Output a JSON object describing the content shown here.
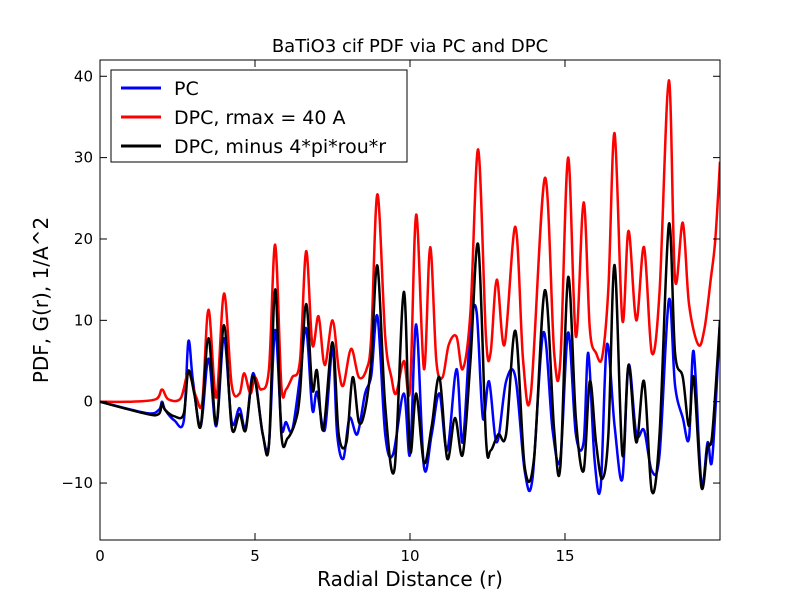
{
  "chart_data": {
    "type": "line",
    "title": "BaTiO3 cif PDF via PC and DPC",
    "xlabel": "Radial Distance (r)",
    "ylabel": "PDF, G(r), 1/A^2",
    "xlim": [
      0,
      20
    ],
    "ylim": [
      -17,
      42
    ],
    "x_ticks": [
      0,
      5,
      10,
      15
    ],
    "x_tick_labels": [
      "0",
      "5",
      "10",
      "15"
    ],
    "y_ticks": [
      -10,
      0,
      10,
      20,
      30,
      40
    ],
    "y_tick_labels": [
      "−10",
      "0",
      "10",
      "20",
      "30",
      "40"
    ],
    "grid": false,
    "legend": {
      "placement": "top-left"
    },
    "series": [
      {
        "name": "PC",
        "color": "#0000ff",
        "points": [
          [
            0,
            0
          ],
          [
            1.5,
            -1.4
          ],
          [
            1.9,
            -1.0
          ],
          [
            2.0,
            0
          ],
          [
            2.1,
            -1.0
          ],
          [
            2.4,
            -2.3
          ],
          [
            2.7,
            -2.4
          ],
          [
            2.85,
            7.4
          ],
          [
            3.0,
            2.5
          ],
          [
            3.25,
            -3.0
          ],
          [
            3.5,
            5.3
          ],
          [
            3.75,
            -3.0
          ],
          [
            4.0,
            7.8
          ],
          [
            4.25,
            -2.5
          ],
          [
            4.5,
            -0.8
          ],
          [
            4.7,
            -3.2
          ],
          [
            4.95,
            3.5
          ],
          [
            5.25,
            -4.0
          ],
          [
            5.45,
            -5.2
          ],
          [
            5.65,
            8.8
          ],
          [
            5.85,
            -3.0
          ],
          [
            6.0,
            -2.5
          ],
          [
            6.2,
            -3.5
          ],
          [
            6.45,
            3.0
          ],
          [
            6.65,
            9.0
          ],
          [
            6.85,
            -1.0
          ],
          [
            7.0,
            1.2
          ],
          [
            7.25,
            -3.5
          ],
          [
            7.5,
            6.5
          ],
          [
            7.65,
            -4.0
          ],
          [
            7.85,
            -7.0
          ],
          [
            8.05,
            -2.0
          ],
          [
            8.3,
            -4.0
          ],
          [
            8.55,
            1.0
          ],
          [
            8.75,
            3.2
          ],
          [
            8.95,
            10.5
          ],
          [
            9.2,
            -4.0
          ],
          [
            9.45,
            -6.5
          ],
          [
            9.8,
            1.0
          ],
          [
            10.0,
            -6.5
          ],
          [
            10.2,
            9.5
          ],
          [
            10.45,
            -8.0
          ],
          [
            10.7,
            -4.0
          ],
          [
            10.95,
            1.0
          ],
          [
            11.2,
            -6.0
          ],
          [
            11.5,
            4.0
          ],
          [
            11.7,
            -5.0
          ],
          [
            11.95,
            9.0
          ],
          [
            12.15,
            11.0
          ],
          [
            12.35,
            -2.0
          ],
          [
            12.55,
            2.5
          ],
          [
            12.8,
            -5.0
          ],
          [
            13.1,
            2.5
          ],
          [
            13.4,
            3.0
          ],
          [
            13.7,
            -8.5
          ],
          [
            13.95,
            -9.5
          ],
          [
            14.3,
            8.5
          ],
          [
            14.6,
            -3.5
          ],
          [
            14.85,
            -7.0
          ],
          [
            15.1,
            8.5
          ],
          [
            15.35,
            -4.0
          ],
          [
            15.6,
            -5.0
          ],
          [
            15.75,
            6.0
          ],
          [
            15.95,
            -7.0
          ],
          [
            16.15,
            -10.5
          ],
          [
            16.35,
            7.0
          ],
          [
            16.6,
            -3.0
          ],
          [
            16.85,
            -9.5
          ],
          [
            17.05,
            4.5
          ],
          [
            17.3,
            -4.0
          ],
          [
            17.55,
            -3.5
          ],
          [
            17.8,
            -8.5
          ],
          [
            18.05,
            -6.5
          ],
          [
            18.35,
            12.5
          ],
          [
            18.55,
            2.0
          ],
          [
            18.8,
            -2.0
          ],
          [
            19.0,
            -4.5
          ],
          [
            19.15,
            6.2
          ],
          [
            19.4,
            -10.0
          ],
          [
            19.6,
            -5.0
          ],
          [
            19.75,
            -7.0
          ],
          [
            20.0,
            9.8
          ]
        ]
      },
      {
        "name": "DPC, rmax = 40 A",
        "color": "#ff0000",
        "points": [
          [
            0,
            0
          ],
          [
            1.0,
            0
          ],
          [
            1.8,
            0.3
          ],
          [
            2.0,
            1.5
          ],
          [
            2.2,
            0.3
          ],
          [
            2.6,
            0.4
          ],
          [
            2.85,
            3.5
          ],
          [
            3.1,
            0.6
          ],
          [
            3.3,
            0.0
          ],
          [
            3.5,
            11.3
          ],
          [
            3.75,
            0.5
          ],
          [
            4.0,
            13.3
          ],
          [
            4.25,
            2.0
          ],
          [
            4.5,
            1.0
          ],
          [
            4.65,
            3.5
          ],
          [
            4.85,
            1.0
          ],
          [
            5.0,
            3.0
          ],
          [
            5.2,
            1.5
          ],
          [
            5.45,
            4.0
          ],
          [
            5.65,
            19.3
          ],
          [
            5.85,
            2.0
          ],
          [
            6.0,
            1.5
          ],
          [
            6.2,
            3.0
          ],
          [
            6.45,
            5.0
          ],
          [
            6.65,
            18.5
          ],
          [
            6.85,
            7.0
          ],
          [
            7.05,
            10.5
          ],
          [
            7.25,
            4.5
          ],
          [
            7.5,
            10.0
          ],
          [
            7.7,
            4.0
          ],
          [
            7.85,
            2.0
          ],
          [
            8.1,
            6.5
          ],
          [
            8.35,
            3.0
          ],
          [
            8.6,
            4.0
          ],
          [
            8.75,
            8.0
          ],
          [
            8.95,
            25.5
          ],
          [
            9.2,
            8.0
          ],
          [
            9.4,
            3.0
          ],
          [
            9.55,
            1.0
          ],
          [
            9.8,
            5.0
          ],
          [
            10.0,
            1.5
          ],
          [
            10.2,
            23.0
          ],
          [
            10.45,
            4.0
          ],
          [
            10.65,
            19.0
          ],
          [
            10.85,
            5.0
          ],
          [
            11.05,
            3.0
          ],
          [
            11.25,
            7.0
          ],
          [
            11.5,
            8.0
          ],
          [
            11.7,
            4.0
          ],
          [
            11.95,
            11.0
          ],
          [
            12.2,
            31.0
          ],
          [
            12.45,
            8.0
          ],
          [
            12.6,
            6.0
          ],
          [
            12.8,
            15.0
          ],
          [
            13.05,
            7.0
          ],
          [
            13.4,
            21.5
          ],
          [
            13.65,
            5.0
          ],
          [
            13.9,
            1.0
          ],
          [
            14.35,
            27.5
          ],
          [
            14.65,
            6.0
          ],
          [
            14.85,
            5.0
          ],
          [
            15.1,
            30.0
          ],
          [
            15.35,
            8.0
          ],
          [
            15.6,
            24.5
          ],
          [
            15.8,
            9.0
          ],
          [
            16.0,
            6.0
          ],
          [
            16.2,
            5.5
          ],
          [
            16.4,
            14.0
          ],
          [
            16.6,
            33.0
          ],
          [
            16.85,
            10.0
          ],
          [
            17.05,
            21.0
          ],
          [
            17.3,
            10.0
          ],
          [
            17.55,
            19.0
          ],
          [
            17.8,
            6.0
          ],
          [
            18.05,
            13.5
          ],
          [
            18.35,
            39.5
          ],
          [
            18.55,
            15.0
          ],
          [
            18.8,
            22.0
          ],
          [
            19.0,
            12.0
          ],
          [
            19.3,
            7.0
          ],
          [
            19.5,
            9.0
          ],
          [
            19.7,
            15.0
          ],
          [
            19.85,
            20.0
          ],
          [
            20.0,
            29.5
          ]
        ]
      },
      {
        "name": "DPC, minus 4*pi*rou*r",
        "color": "#000000",
        "points": [
          [
            0,
            0
          ],
          [
            1.5,
            -1.5
          ],
          [
            1.9,
            -1.5
          ],
          [
            2.0,
            -0.2
          ],
          [
            2.1,
            -1.0
          ],
          [
            2.4,
            -1.8
          ],
          [
            2.7,
            -1.5
          ],
          [
            2.85,
            3.8
          ],
          [
            3.05,
            0.8
          ],
          [
            3.25,
            -3.0
          ],
          [
            3.5,
            7.8
          ],
          [
            3.75,
            -2.8
          ],
          [
            4.0,
            9.4
          ],
          [
            4.25,
            -3.2
          ],
          [
            4.5,
            -1.5
          ],
          [
            4.7,
            -3.5
          ],
          [
            4.95,
            3.2
          ],
          [
            5.25,
            -4.0
          ],
          [
            5.45,
            -5.3
          ],
          [
            5.65,
            13.8
          ],
          [
            5.85,
            -4.0
          ],
          [
            6.05,
            -4.5
          ],
          [
            6.3,
            -2.5
          ],
          [
            6.45,
            1.0
          ],
          [
            6.65,
            12.0
          ],
          [
            6.85,
            1.5
          ],
          [
            7.0,
            3.8
          ],
          [
            7.2,
            -3.5
          ],
          [
            7.5,
            7.3
          ],
          [
            7.7,
            -4.0
          ],
          [
            7.95,
            -5.0
          ],
          [
            8.15,
            3.0
          ],
          [
            8.35,
            -2.5
          ],
          [
            8.55,
            -1.0
          ],
          [
            8.75,
            5.0
          ],
          [
            8.95,
            16.7
          ],
          [
            9.2,
            -0.5
          ],
          [
            9.5,
            -8.3
          ],
          [
            9.8,
            13.5
          ],
          [
            10.0,
            -6.0
          ],
          [
            10.2,
            1.0
          ],
          [
            10.45,
            -7.5
          ],
          [
            10.7,
            -3.0
          ],
          [
            10.95,
            3.0
          ],
          [
            11.2,
            -7.0
          ],
          [
            11.45,
            -2.0
          ],
          [
            11.7,
            -6.5
          ],
          [
            11.95,
            5.0
          ],
          [
            12.2,
            19.3
          ],
          [
            12.45,
            -4.5
          ],
          [
            12.6,
            -6.0
          ],
          [
            12.85,
            -4.0
          ],
          [
            13.1,
            -4.0
          ],
          [
            13.4,
            8.7
          ],
          [
            13.7,
            -8.0
          ],
          [
            14.0,
            -7.0
          ],
          [
            14.35,
            13.7
          ],
          [
            14.65,
            -3.5
          ],
          [
            14.85,
            -8.0
          ],
          [
            15.1,
            15.3
          ],
          [
            15.35,
            -2.0
          ],
          [
            15.6,
            -8.5
          ],
          [
            15.8,
            2.5
          ],
          [
            16.0,
            -5.0
          ],
          [
            16.2,
            -9.5
          ],
          [
            16.4,
            -4.0
          ],
          [
            16.6,
            16.8
          ],
          [
            16.85,
            -6.5
          ],
          [
            17.05,
            4.5
          ],
          [
            17.3,
            -5.0
          ],
          [
            17.55,
            2.5
          ],
          [
            17.8,
            -11.0
          ],
          [
            18.05,
            -4.0
          ],
          [
            18.35,
            21.8
          ],
          [
            18.55,
            6.0
          ],
          [
            18.8,
            3.0
          ],
          [
            19.0,
            -3.0
          ],
          [
            19.15,
            3.0
          ],
          [
            19.4,
            -10.5
          ],
          [
            19.6,
            -5.5
          ],
          [
            19.75,
            -4.0
          ],
          [
            20.0,
            10.0
          ]
        ]
      }
    ]
  }
}
